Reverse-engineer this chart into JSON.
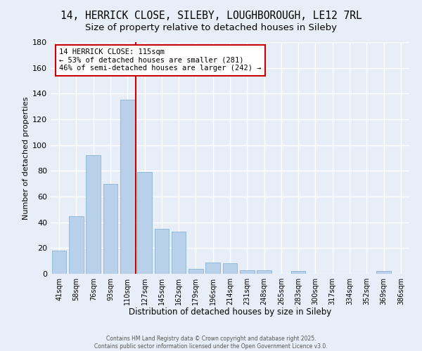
{
  "title": "14, HERRICK CLOSE, SILEBY, LOUGHBOROUGH, LE12 7RL",
  "subtitle": "Size of property relative to detached houses in Sileby",
  "xlabel": "Distribution of detached houses by size in Sileby",
  "ylabel": "Number of detached properties",
  "bar_labels": [
    "41sqm",
    "58sqm",
    "76sqm",
    "93sqm",
    "110sqm",
    "127sqm",
    "145sqm",
    "162sqm",
    "179sqm",
    "196sqm",
    "214sqm",
    "231sqm",
    "248sqm",
    "265sqm",
    "283sqm",
    "300sqm",
    "317sqm",
    "334sqm",
    "352sqm",
    "369sqm",
    "386sqm"
  ],
  "bar_values": [
    18,
    45,
    92,
    70,
    135,
    79,
    35,
    33,
    4,
    9,
    8,
    3,
    3,
    0,
    2,
    0,
    0,
    0,
    0,
    2,
    0
  ],
  "bar_color": "#b8d0ea",
  "bar_edge_color": "#8ab4d4",
  "vline_x": 4.5,
  "vline_color": "#cc0000",
  "ylim": [
    0,
    180
  ],
  "yticks": [
    0,
    20,
    40,
    60,
    80,
    100,
    120,
    140,
    160,
    180
  ],
  "annotation_text": "14 HERRICK CLOSE: 115sqm\n← 53% of detached houses are smaller (281)\n46% of semi-detached houses are larger (242) →",
  "annotation_box_color": "#ffffff",
  "annotation_box_edge": "#cc0000",
  "footer_line1": "Contains HM Land Registry data © Crown copyright and database right 2025.",
  "footer_line2": "Contains public sector information licensed under the Open Government Licence v3.0.",
  "background_color": "#e8eef8",
  "grid_color": "#ffffff",
  "title_fontsize": 10.5,
  "subtitle_fontsize": 9.5
}
